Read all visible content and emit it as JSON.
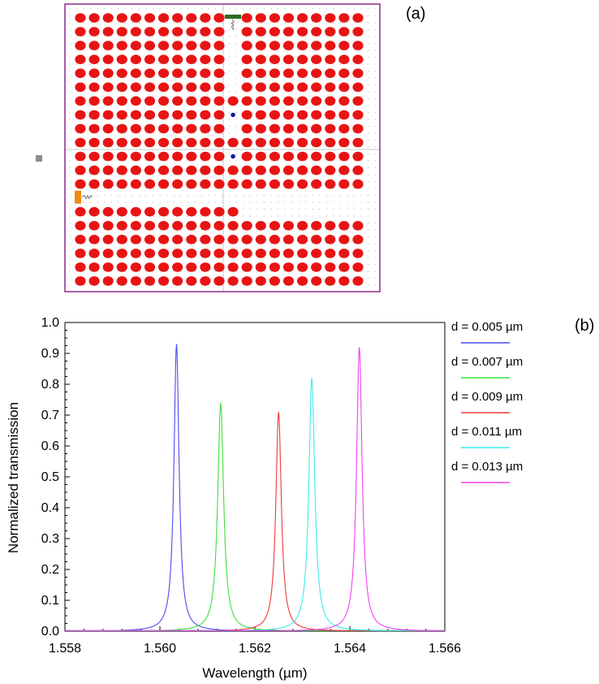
{
  "panel_a": {
    "label": "(a)",
    "lattice": {
      "rows": 20,
      "cols": 21,
      "rod_color": "#e81414",
      "frame_color": "#8a2a8a",
      "grid_dot_color": "#b8b8b8",
      "defect_dot_color": "#1a1a9a",
      "source_color": "#f08a14",
      "monitor_color": "#2a6a1a",
      "bus_waveguide_row": 13,
      "drop_waveguide_col": 11,
      "drop_waveguide_rows": [
        0,
        5
      ],
      "cavity_rods": [
        [
          7,
          11
        ],
        [
          10,
          11
        ]
      ],
      "missing_extra": [
        [
          14,
          19
        ],
        [
          14,
          20
        ],
        [
          14,
          12
        ],
        [
          14,
          13
        ],
        [
          14,
          14
        ],
        [
          14,
          15
        ],
        [
          14,
          16
        ],
        [
          14,
          17
        ],
        [
          14,
          18
        ]
      ]
    }
  },
  "panel_b": {
    "label": "(b)"
  },
  "chart_data": {
    "type": "line",
    "title": "",
    "xlabel": "Wavelength (µm)",
    "ylabel": "Normalized transmission",
    "xlim": [
      1.558,
      1.566
    ],
    "ylim": [
      0.0,
      1.0
    ],
    "xticks": [
      "1.558",
      "1.560",
      "1.562",
      "1.564",
      "1.566"
    ],
    "xtick_values": [
      1.558,
      1.56,
      1.562,
      1.564,
      1.566
    ],
    "yticks": [
      "0.0",
      "0.1",
      "0.2",
      "0.3",
      "0.4",
      "0.5",
      "0.6",
      "0.7",
      "0.8",
      "0.9",
      "1.0"
    ],
    "ytick_values": [
      0.0,
      0.1,
      0.2,
      0.3,
      0.4,
      0.5,
      0.6,
      0.7,
      0.8,
      0.9,
      1.0
    ],
    "grid": false,
    "legend_position": "outside-right",
    "series": [
      {
        "name": "d = 0.005 µm",
        "color": "#4a4af0",
        "peak_x": 1.56035,
        "peak_y": 0.93,
        "fwhm": 0.00013
      },
      {
        "name": "d = 0.007 µm",
        "color": "#3ce03c",
        "peak_x": 1.56128,
        "peak_y": 0.74,
        "fwhm": 0.00015
      },
      {
        "name": "d = 0.009 µm",
        "color": "#f03a3a",
        "peak_x": 1.5625,
        "peak_y": 0.71,
        "fwhm": 0.00014
      },
      {
        "name": "d = 0.011 µm",
        "color": "#3ce8e8",
        "peak_x": 1.5632,
        "peak_y": 0.82,
        "fwhm": 0.00015
      },
      {
        "name": "d = 0.013 µm",
        "color": "#f040f0",
        "peak_x": 1.5642,
        "peak_y": 0.92,
        "fwhm": 0.00014
      }
    ]
  }
}
